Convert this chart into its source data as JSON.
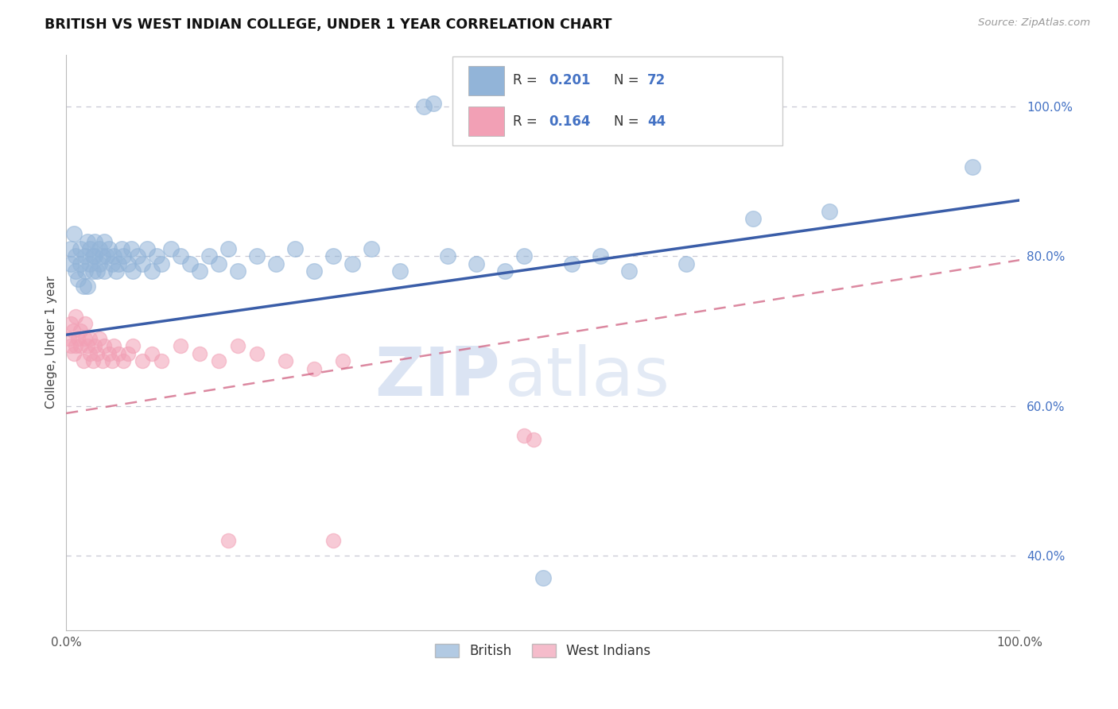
{
  "title": "BRITISH VS WEST INDIAN COLLEGE, UNDER 1 YEAR CORRELATION CHART",
  "source_text": "Source: ZipAtlas.com",
  "ylabel": "College, Under 1 year",
  "legend_label_british": "British",
  "legend_label_westindian": "West Indians",
  "watermark_zip": "ZIP",
  "watermark_atlas": "atlas",
  "blue_color": "#92B4D8",
  "pink_color": "#F2A0B5",
  "blue_line_color": "#3A5DA8",
  "pink_line_color": "#D06080",
  "legend_r_color": "#4472C4",
  "grid_color": "#C8C8D4",
  "r_british": "0.201",
  "n_british": "72",
  "r_westindian": "0.164",
  "n_westindian": "44",
  "ytick_positions": [
    0.4,
    0.6,
    0.8,
    1.0
  ],
  "xlim": [
    0.0,
    1.0
  ],
  "ylim": [
    0.3,
    1.07
  ],
  "british_x": [
    0.005,
    0.005,
    0.008,
    0.01,
    0.01,
    0.012,
    0.015,
    0.015,
    0.018,
    0.02,
    0.02,
    0.022,
    0.022,
    0.025,
    0.025,
    0.028,
    0.028,
    0.03,
    0.03,
    0.032,
    0.035,
    0.035,
    0.038,
    0.04,
    0.04,
    0.042,
    0.045,
    0.048,
    0.05,
    0.052,
    0.055,
    0.058,
    0.06,
    0.065,
    0.068,
    0.07,
    0.075,
    0.08,
    0.085,
    0.09,
    0.095,
    0.1,
    0.11,
    0.12,
    0.13,
    0.14,
    0.15,
    0.16,
    0.17,
    0.18,
    0.2,
    0.22,
    0.24,
    0.26,
    0.28,
    0.3,
    0.32,
    0.35,
    0.375,
    0.385,
    0.4,
    0.43,
    0.46,
    0.48,
    0.5,
    0.53,
    0.56,
    0.59,
    0.65,
    0.72,
    0.8,
    0.95
  ],
  "british_y": [
    0.79,
    0.81,
    0.83,
    0.78,
    0.8,
    0.77,
    0.79,
    0.81,
    0.76,
    0.8,
    0.78,
    0.82,
    0.76,
    0.79,
    0.81,
    0.8,
    0.78,
    0.82,
    0.8,
    0.78,
    0.81,
    0.79,
    0.8,
    0.82,
    0.78,
    0.8,
    0.81,
    0.79,
    0.8,
    0.78,
    0.79,
    0.81,
    0.8,
    0.79,
    0.81,
    0.78,
    0.8,
    0.79,
    0.81,
    0.78,
    0.8,
    0.79,
    0.81,
    0.8,
    0.79,
    0.78,
    0.8,
    0.79,
    0.81,
    0.78,
    0.8,
    0.79,
    0.81,
    0.78,
    0.8,
    0.79,
    0.81,
    0.78,
    1.0,
    1.005,
    0.8,
    0.79,
    0.78,
    0.8,
    0.37,
    0.79,
    0.8,
    0.78,
    0.79,
    0.85,
    0.86,
    0.92
  ],
  "westindian_x": [
    0.003,
    0.005,
    0.005,
    0.007,
    0.008,
    0.01,
    0.01,
    0.012,
    0.015,
    0.015,
    0.018,
    0.02,
    0.02,
    0.022,
    0.025,
    0.025,
    0.028,
    0.03,
    0.032,
    0.035,
    0.038,
    0.04,
    0.045,
    0.048,
    0.05,
    0.055,
    0.06,
    0.065,
    0.07,
    0.08,
    0.09,
    0.1,
    0.12,
    0.14,
    0.16,
    0.18,
    0.2,
    0.23,
    0.26,
    0.29,
    0.17,
    0.28,
    0.48,
    0.49
  ],
  "westindian_y": [
    0.69,
    0.71,
    0.68,
    0.7,
    0.67,
    0.72,
    0.68,
    0.69,
    0.7,
    0.68,
    0.66,
    0.69,
    0.71,
    0.68,
    0.67,
    0.69,
    0.66,
    0.68,
    0.67,
    0.69,
    0.66,
    0.68,
    0.67,
    0.66,
    0.68,
    0.67,
    0.66,
    0.67,
    0.68,
    0.66,
    0.67,
    0.66,
    0.68,
    0.67,
    0.66,
    0.68,
    0.67,
    0.66,
    0.65,
    0.66,
    0.42,
    0.42,
    0.56,
    0.555
  ]
}
